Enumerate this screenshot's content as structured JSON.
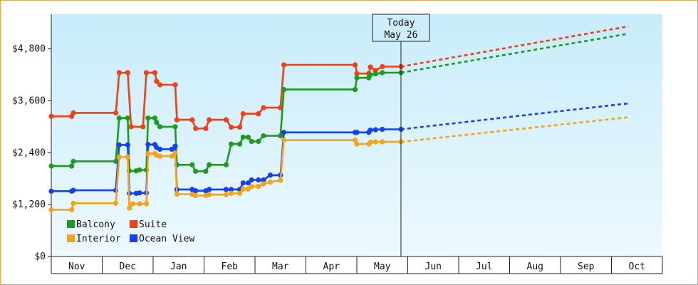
{
  "chart_data": {
    "type": "line",
    "title": "",
    "xlabel": "",
    "ylabel": "",
    "ylim": [
      0,
      5600
    ],
    "y_ticks": [
      "$0",
      "$1,200",
      "$2,400",
      "$3,600",
      "$4,800"
    ],
    "y_tick_values": [
      0,
      1200,
      2400,
      3600,
      4800
    ],
    "months": [
      "Nov",
      "Dec",
      "Jan",
      "Feb",
      "Mar",
      "Apr",
      "May",
      "Jun",
      "Jul",
      "Aug",
      "Sep",
      "Oct"
    ],
    "today": {
      "line1": "Today",
      "line2": "May 26",
      "day": 206
    },
    "grid": false,
    "legend_position": "bottom-left",
    "colors": {
      "Balcony": "#1e9a1e",
      "Suite": "#f04016",
      "Interior": "#f5a31a",
      "Ocean View": "#1440f0"
    },
    "series": [
      {
        "name": "Suite",
        "color": "#f04016",
        "points": [
          [
            0,
            3240
          ],
          [
            12,
            3240
          ],
          [
            13,
            3320
          ],
          [
            38,
            3320
          ],
          [
            40,
            4250
          ],
          [
            45,
            4250
          ],
          [
            47,
            3000
          ],
          [
            54,
            3000
          ],
          [
            56,
            4250
          ],
          [
            61,
            4250
          ],
          [
            62,
            4050
          ],
          [
            64,
            3970
          ],
          [
            73,
            3970
          ],
          [
            74,
            3160
          ],
          [
            83,
            3160
          ],
          [
            85,
            2960
          ],
          [
            91,
            2960
          ],
          [
            93,
            3160
          ],
          [
            103,
            3160
          ],
          [
            106,
            2990
          ],
          [
            111,
            2990
          ],
          [
            113,
            3300
          ],
          [
            122,
            3300
          ],
          [
            125,
            3440
          ],
          [
            135,
            3440
          ],
          [
            137,
            4430
          ],
          [
            179,
            4430
          ],
          [
            180,
            4230
          ],
          [
            187,
            4230
          ],
          [
            188,
            4380
          ],
          [
            191,
            4300
          ],
          [
            195,
            4390
          ],
          [
            206,
            4390
          ]
        ],
        "forecast": [
          [
            206,
            4390
          ],
          [
            340,
            5320
          ]
        ]
      },
      {
        "name": "Balcony",
        "color": "#1e9a1e",
        "points": [
          [
            0,
            2090
          ],
          [
            12,
            2090
          ],
          [
            13,
            2200
          ],
          [
            38,
            2200
          ],
          [
            40,
            3200
          ],
          [
            45,
            3200
          ],
          [
            46,
            1980
          ],
          [
            50,
            1980
          ],
          [
            52,
            2000
          ],
          [
            56,
            2000
          ],
          [
            57,
            3200
          ],
          [
            61,
            3200
          ],
          [
            62,
            3100
          ],
          [
            64,
            3000
          ],
          [
            73,
            3000
          ],
          [
            74,
            2120
          ],
          [
            83,
            2120
          ],
          [
            85,
            1970
          ],
          [
            91,
            1970
          ],
          [
            93,
            2120
          ],
          [
            103,
            2120
          ],
          [
            106,
            2600
          ],
          [
            111,
            2600
          ],
          [
            113,
            2760
          ],
          [
            116,
            2760
          ],
          [
            118,
            2660
          ],
          [
            122,
            2660
          ],
          [
            125,
            2790
          ],
          [
            135,
            2790
          ],
          [
            137,
            3860
          ],
          [
            179,
            3860
          ],
          [
            180,
            4130
          ],
          [
            187,
            4130
          ],
          [
            188,
            4200
          ],
          [
            191,
            4220
          ],
          [
            195,
            4250
          ],
          [
            206,
            4250
          ]
        ],
        "forecast": [
          [
            206,
            4250
          ],
          [
            340,
            5150
          ]
        ]
      },
      {
        "name": "Ocean View",
        "color": "#1440f0",
        "points": [
          [
            0,
            1510
          ],
          [
            12,
            1510
          ],
          [
            13,
            1530
          ],
          [
            38,
            1530
          ],
          [
            40,
            2580
          ],
          [
            45,
            2580
          ],
          [
            46,
            1460
          ],
          [
            50,
            1460
          ],
          [
            52,
            1470
          ],
          [
            56,
            1470
          ],
          [
            57,
            2590
          ],
          [
            61,
            2590
          ],
          [
            62,
            2520
          ],
          [
            64,
            2480
          ],
          [
            71,
            2480
          ],
          [
            73,
            2550
          ],
          [
            74,
            1550
          ],
          [
            83,
            1550
          ],
          [
            85,
            1520
          ],
          [
            91,
            1520
          ],
          [
            93,
            1550
          ],
          [
            103,
            1550
          ],
          [
            106,
            1550
          ],
          [
            111,
            1550
          ],
          [
            113,
            1700
          ],
          [
            116,
            1700
          ],
          [
            118,
            1770
          ],
          [
            122,
            1770
          ],
          [
            125,
            1770
          ],
          [
            129,
            1880
          ],
          [
            135,
            1880
          ],
          [
            137,
            2870
          ],
          [
            179,
            2870
          ],
          [
            180,
            2870
          ],
          [
            187,
            2870
          ],
          [
            188,
            2920
          ],
          [
            191,
            2930
          ],
          [
            195,
            2940
          ],
          [
            206,
            2940
          ]
        ],
        "forecast": [
          [
            206,
            2940
          ],
          [
            340,
            3540
          ]
        ]
      },
      {
        "name": "Interior",
        "color": "#f5a31a",
        "points": [
          [
            0,
            1080
          ],
          [
            12,
            1080
          ],
          [
            13,
            1230
          ],
          [
            38,
            1230
          ],
          [
            40,
            2300
          ],
          [
            45,
            2300
          ],
          [
            46,
            1120
          ],
          [
            48,
            1220
          ],
          [
            52,
            1220
          ],
          [
            56,
            1220
          ],
          [
            57,
            2380
          ],
          [
            61,
            2380
          ],
          [
            62,
            2340
          ],
          [
            64,
            2320
          ],
          [
            71,
            2320
          ],
          [
            73,
            2390
          ],
          [
            74,
            1440
          ],
          [
            83,
            1440
          ],
          [
            85,
            1410
          ],
          [
            91,
            1410
          ],
          [
            93,
            1430
          ],
          [
            103,
            1430
          ],
          [
            106,
            1460
          ],
          [
            111,
            1460
          ],
          [
            113,
            1560
          ],
          [
            116,
            1560
          ],
          [
            118,
            1620
          ],
          [
            122,
            1620
          ],
          [
            125,
            1680
          ],
          [
            129,
            1720
          ],
          [
            135,
            1760
          ],
          [
            137,
            2690
          ],
          [
            179,
            2690
          ],
          [
            180,
            2600
          ],
          [
            187,
            2600
          ],
          [
            188,
            2640
          ],
          [
            191,
            2650
          ],
          [
            195,
            2650
          ],
          [
            206,
            2650
          ]
        ],
        "forecast": [
          [
            206,
            2650
          ],
          [
            340,
            3220
          ]
        ]
      }
    ],
    "legend": [
      "Balcony",
      "Suite",
      "Interior",
      "Ocean View"
    ]
  }
}
